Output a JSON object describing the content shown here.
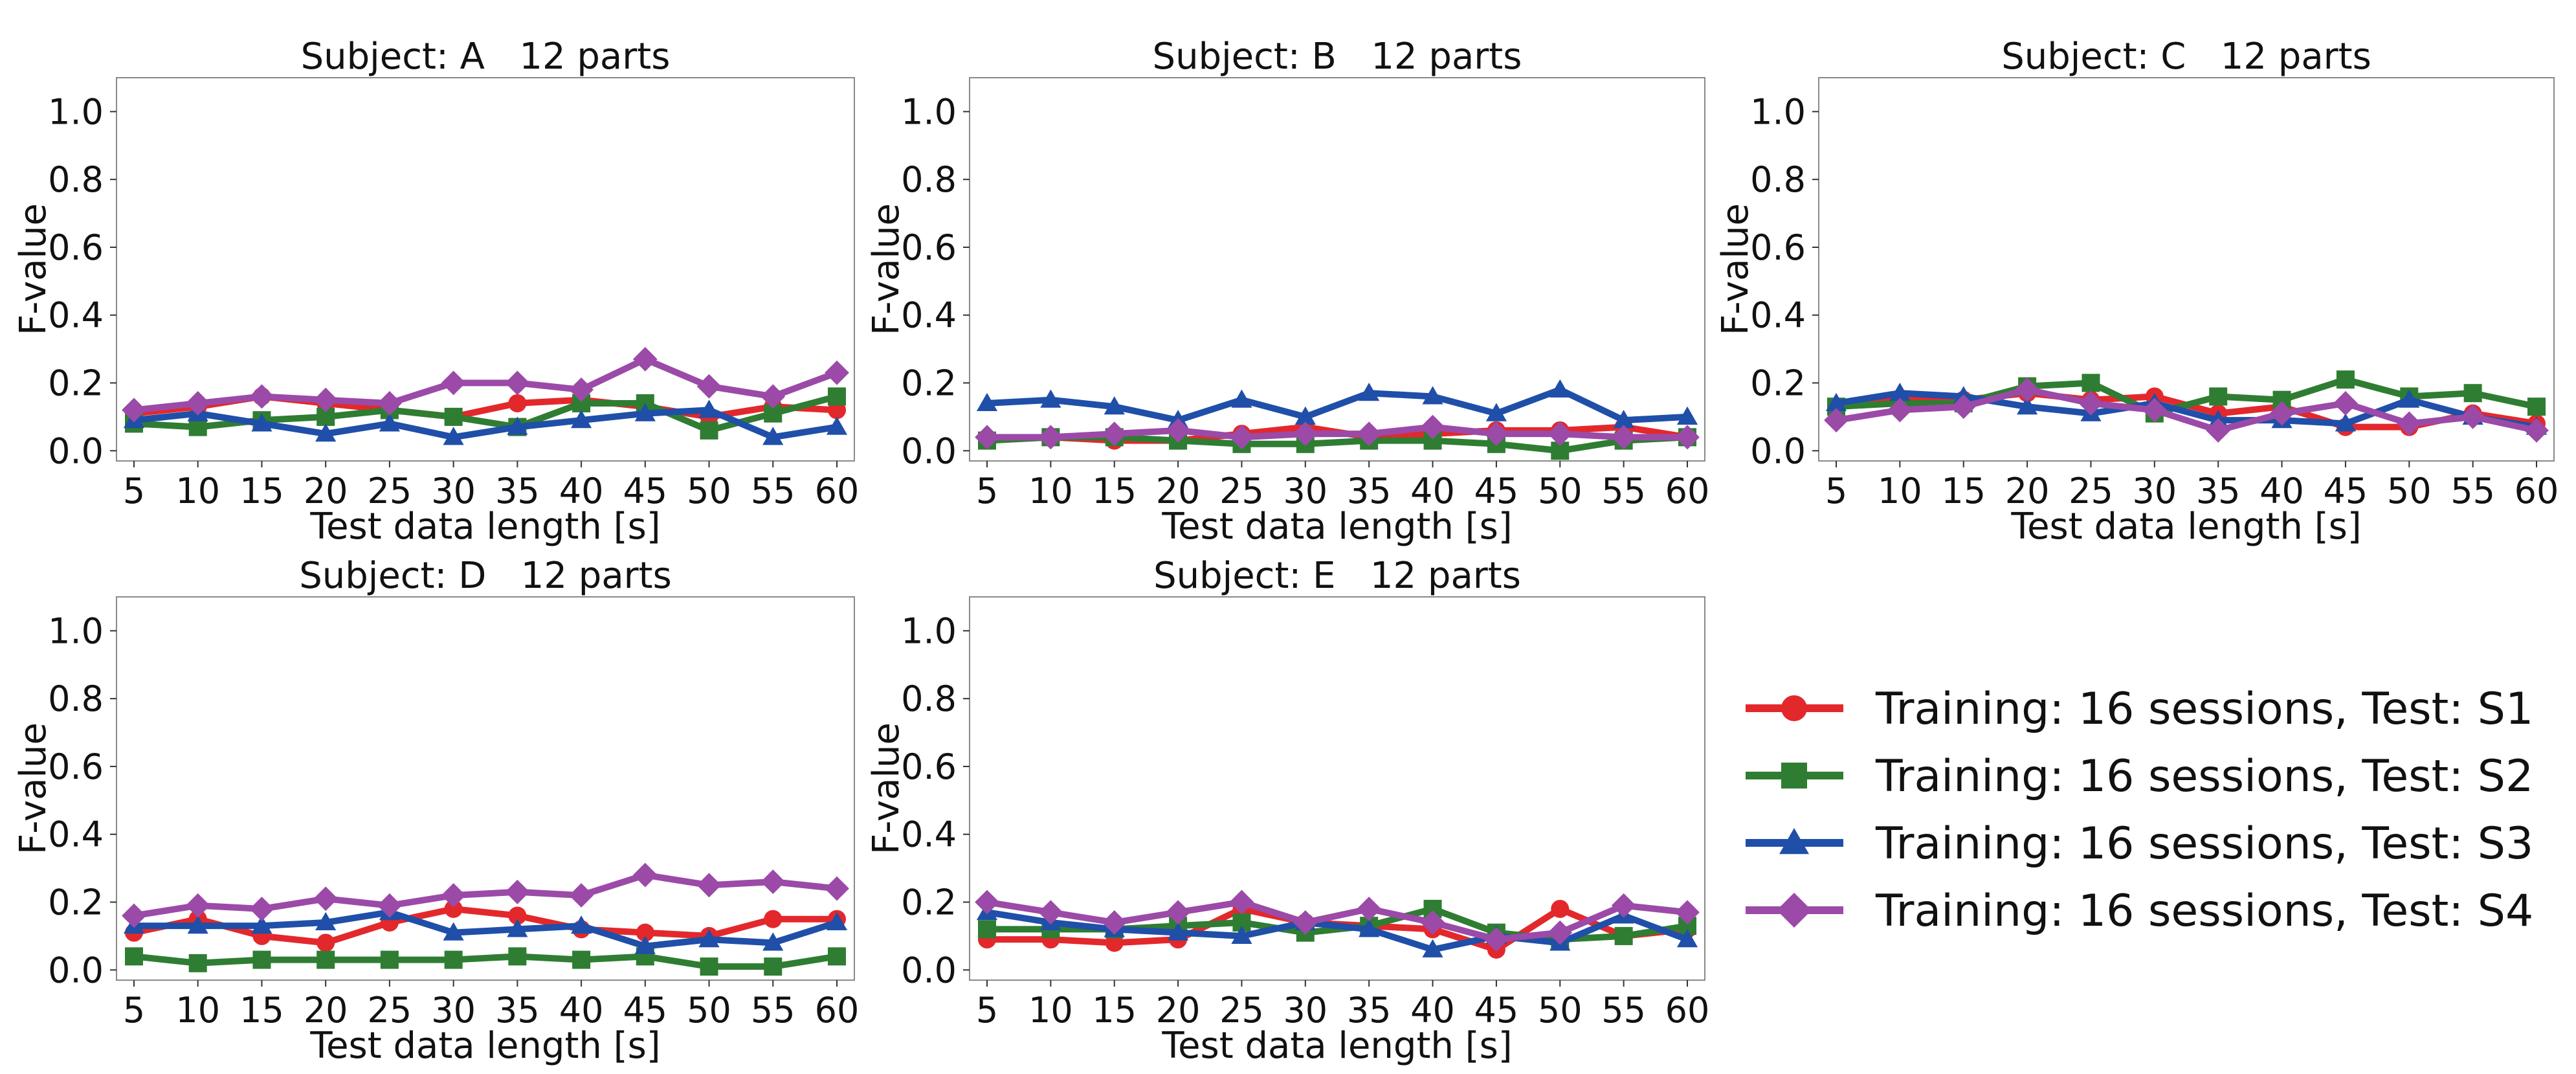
{
  "series_meta": [
    {
      "name": "Training: 16 sessions, Test: S1",
      "color": "#e3282c",
      "marker": "circle"
    },
    {
      "name": "Training: 16 sessions, Test: S2",
      "color": "#2f7d32",
      "marker": "square"
    },
    {
      "name": "Training: 16 sessions, Test: S3",
      "color": "#1f4fa8",
      "marker": "triangle"
    },
    {
      "name": "Training: 16 sessions, Test: S4",
      "color": "#9b4aa8",
      "marker": "diamond"
    }
  ],
  "chart_data": [
    {
      "type": "line",
      "title": "Subject: A   12 parts",
      "xlabel": "Test data length [s]",
      "ylabel": "F-value",
      "ylim": [
        -0.03,
        1.1
      ],
      "y_ticks": [
        "0.0",
        "0.2",
        "0.4",
        "0.6",
        "0.8",
        "1.0"
      ],
      "x": [
        "5",
        "10",
        "15",
        "20",
        "25",
        "30",
        "35",
        "40",
        "45",
        "50",
        "55",
        "60"
      ],
      "series": [
        {
          "name": "Training: 16 sessions, Test: S1",
          "values": [
            0.11,
            0.13,
            0.16,
            0.14,
            0.12,
            0.1,
            0.14,
            0.15,
            0.13,
            0.1,
            0.13,
            0.12
          ]
        },
        {
          "name": "Training: 16 sessions, Test: S2",
          "values": [
            0.08,
            0.07,
            0.09,
            0.1,
            0.12,
            0.1,
            0.07,
            0.14,
            0.14,
            0.06,
            0.11,
            0.16
          ]
        },
        {
          "name": "Training: 16 sessions, Test: S3",
          "values": [
            0.09,
            0.11,
            0.08,
            0.05,
            0.08,
            0.04,
            0.07,
            0.09,
            0.11,
            0.12,
            0.04,
            0.07
          ]
        },
        {
          "name": "Training: 16 sessions, Test: S4",
          "values": [
            0.12,
            0.14,
            0.16,
            0.15,
            0.14,
            0.2,
            0.2,
            0.18,
            0.27,
            0.19,
            0.16,
            0.23
          ]
        }
      ]
    },
    {
      "type": "line",
      "title": "Subject: B   12 parts",
      "xlabel": "Test data length [s]",
      "ylabel": "F-value",
      "ylim": [
        -0.03,
        1.1
      ],
      "y_ticks": [
        "0.0",
        "0.2",
        "0.4",
        "0.6",
        "0.8",
        "1.0"
      ],
      "x": [
        "5",
        "10",
        "15",
        "20",
        "25",
        "30",
        "35",
        "40",
        "45",
        "50",
        "55",
        "60"
      ],
      "series": [
        {
          "name": "Training: 16 sessions, Test: S1",
          "values": [
            0.03,
            0.04,
            0.03,
            0.03,
            0.05,
            0.07,
            0.04,
            0.05,
            0.06,
            0.06,
            0.07,
            0.04
          ]
        },
        {
          "name": "Training: 16 sessions, Test: S2",
          "values": [
            0.03,
            0.04,
            0.04,
            0.03,
            0.02,
            0.02,
            0.03,
            0.03,
            0.02,
            0.0,
            0.03,
            0.04
          ]
        },
        {
          "name": "Training: 16 sessions, Test: S3",
          "values": [
            0.14,
            0.15,
            0.13,
            0.09,
            0.15,
            0.1,
            0.17,
            0.16,
            0.11,
            0.18,
            0.09,
            0.1
          ]
        },
        {
          "name": "Training: 16 sessions, Test: S4",
          "values": [
            0.04,
            0.04,
            0.05,
            0.06,
            0.04,
            0.05,
            0.05,
            0.07,
            0.05,
            0.05,
            0.04,
            0.04
          ]
        }
      ]
    },
    {
      "type": "line",
      "title": "Subject: C   12 parts",
      "xlabel": "Test data length [s]",
      "ylabel": "F-value",
      "ylim": [
        -0.03,
        1.1
      ],
      "y_ticks": [
        "0.0",
        "0.2",
        "0.4",
        "0.6",
        "0.8",
        "1.0"
      ],
      "x": [
        "5",
        "10",
        "15",
        "20",
        "25",
        "30",
        "35",
        "40",
        "45",
        "50",
        "55",
        "60"
      ],
      "series": [
        {
          "name": "Training: 16 sessions, Test: S1",
          "values": [
            0.13,
            0.15,
            0.15,
            0.17,
            0.15,
            0.16,
            0.11,
            0.13,
            0.07,
            0.07,
            0.11,
            0.08
          ]
        },
        {
          "name": "Training: 16 sessions, Test: S2",
          "values": [
            0.13,
            0.14,
            0.14,
            0.19,
            0.2,
            0.11,
            0.16,
            0.15,
            0.21,
            0.16,
            0.17,
            0.13
          ]
        },
        {
          "name": "Training: 16 sessions, Test: S3",
          "values": [
            0.14,
            0.17,
            0.16,
            0.13,
            0.11,
            0.14,
            0.09,
            0.09,
            0.08,
            0.15,
            0.1,
            0.07
          ]
        },
        {
          "name": "Training: 16 sessions, Test: S4",
          "values": [
            0.09,
            0.12,
            0.13,
            0.18,
            0.14,
            0.12,
            0.06,
            0.11,
            0.14,
            0.08,
            0.1,
            0.06
          ]
        }
      ]
    },
    {
      "type": "line",
      "title": "Subject: D   12 parts",
      "xlabel": "Test data length [s]",
      "ylabel": "F-value",
      "ylim": [
        -0.03,
        1.1
      ],
      "y_ticks": [
        "0.0",
        "0.2",
        "0.4",
        "0.6",
        "0.8",
        "1.0"
      ],
      "x": [
        "5",
        "10",
        "15",
        "20",
        "25",
        "30",
        "35",
        "40",
        "45",
        "50",
        "55",
        "60"
      ],
      "series": [
        {
          "name": "Training: 16 sessions, Test: S1",
          "values": [
            0.11,
            0.15,
            0.1,
            0.08,
            0.14,
            0.18,
            0.16,
            0.12,
            0.11,
            0.1,
            0.15,
            0.15
          ]
        },
        {
          "name": "Training: 16 sessions, Test: S2",
          "values": [
            0.04,
            0.02,
            0.03,
            0.03,
            0.03,
            0.03,
            0.04,
            0.03,
            0.04,
            0.01,
            0.01,
            0.04
          ]
        },
        {
          "name": "Training: 16 sessions, Test: S3",
          "values": [
            0.13,
            0.13,
            0.13,
            0.14,
            0.17,
            0.11,
            0.12,
            0.13,
            0.07,
            0.09,
            0.08,
            0.14
          ]
        },
        {
          "name": "Training: 16 sessions, Test: S4",
          "values": [
            0.16,
            0.19,
            0.18,
            0.21,
            0.19,
            0.22,
            0.23,
            0.22,
            0.28,
            0.25,
            0.26,
            0.24
          ]
        }
      ]
    },
    {
      "type": "line",
      "title": "Subject: E   12 parts",
      "xlabel": "Test data length [s]",
      "ylabel": "F-value",
      "ylim": [
        -0.03,
        1.1
      ],
      "y_ticks": [
        "0.0",
        "0.2",
        "0.4",
        "0.6",
        "0.8",
        "1.0"
      ],
      "x": [
        "5",
        "10",
        "15",
        "20",
        "25",
        "30",
        "35",
        "40",
        "45",
        "50",
        "55",
        "60"
      ],
      "series": [
        {
          "name": "Training: 16 sessions, Test: S1",
          "values": [
            0.09,
            0.09,
            0.08,
            0.09,
            0.18,
            0.14,
            0.13,
            0.12,
            0.06,
            0.18,
            0.1,
            0.12
          ]
        },
        {
          "name": "Training: 16 sessions, Test: S2",
          "values": [
            0.12,
            0.12,
            0.12,
            0.13,
            0.14,
            0.11,
            0.13,
            0.18,
            0.11,
            0.09,
            0.1,
            0.13
          ]
        },
        {
          "name": "Training: 16 sessions, Test: S3",
          "values": [
            0.17,
            0.14,
            0.12,
            0.11,
            0.1,
            0.14,
            0.12,
            0.06,
            0.1,
            0.08,
            0.16,
            0.09
          ]
        },
        {
          "name": "Training: 16 sessions, Test: S4",
          "values": [
            0.2,
            0.17,
            0.14,
            0.17,
            0.2,
            0.14,
            0.18,
            0.14,
            0.09,
            0.11,
            0.19,
            0.17
          ]
        }
      ]
    }
  ]
}
